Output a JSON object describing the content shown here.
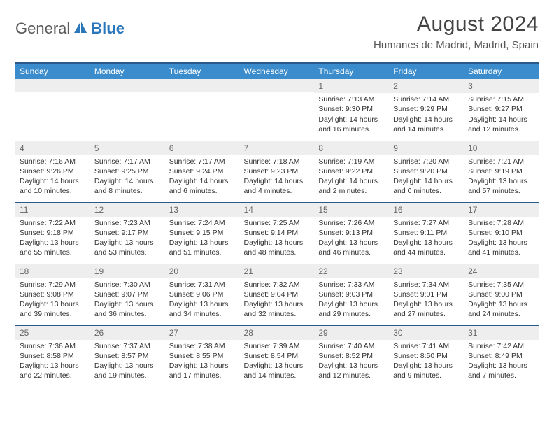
{
  "logo": {
    "text1": "General",
    "text2": "Blue"
  },
  "title": "August 2024",
  "location": "Humanes de Madrid, Madrid, Spain",
  "colors": {
    "header_bg": "#3b8ccc",
    "border": "#2a5a8a",
    "daynum_bg": "#eeeeee",
    "logo_blue": "#2a77bb"
  },
  "weekdays": [
    "Sunday",
    "Monday",
    "Tuesday",
    "Wednesday",
    "Thursday",
    "Friday",
    "Saturday"
  ],
  "weeks": [
    [
      null,
      null,
      null,
      null,
      {
        "n": "1",
        "sr": "7:13 AM",
        "ss": "9:30 PM",
        "dl": "14 hours and 16 minutes."
      },
      {
        "n": "2",
        "sr": "7:14 AM",
        "ss": "9:29 PM",
        "dl": "14 hours and 14 minutes."
      },
      {
        "n": "3",
        "sr": "7:15 AM",
        "ss": "9:27 PM",
        "dl": "14 hours and 12 minutes."
      }
    ],
    [
      {
        "n": "4",
        "sr": "7:16 AM",
        "ss": "9:26 PM",
        "dl": "14 hours and 10 minutes."
      },
      {
        "n": "5",
        "sr": "7:17 AM",
        "ss": "9:25 PM",
        "dl": "14 hours and 8 minutes."
      },
      {
        "n": "6",
        "sr": "7:17 AM",
        "ss": "9:24 PM",
        "dl": "14 hours and 6 minutes."
      },
      {
        "n": "7",
        "sr": "7:18 AM",
        "ss": "9:23 PM",
        "dl": "14 hours and 4 minutes."
      },
      {
        "n": "8",
        "sr": "7:19 AM",
        "ss": "9:22 PM",
        "dl": "14 hours and 2 minutes."
      },
      {
        "n": "9",
        "sr": "7:20 AM",
        "ss": "9:20 PM",
        "dl": "14 hours and 0 minutes."
      },
      {
        "n": "10",
        "sr": "7:21 AM",
        "ss": "9:19 PM",
        "dl": "13 hours and 57 minutes."
      }
    ],
    [
      {
        "n": "11",
        "sr": "7:22 AM",
        "ss": "9:18 PM",
        "dl": "13 hours and 55 minutes."
      },
      {
        "n": "12",
        "sr": "7:23 AM",
        "ss": "9:17 PM",
        "dl": "13 hours and 53 minutes."
      },
      {
        "n": "13",
        "sr": "7:24 AM",
        "ss": "9:15 PM",
        "dl": "13 hours and 51 minutes."
      },
      {
        "n": "14",
        "sr": "7:25 AM",
        "ss": "9:14 PM",
        "dl": "13 hours and 48 minutes."
      },
      {
        "n": "15",
        "sr": "7:26 AM",
        "ss": "9:13 PM",
        "dl": "13 hours and 46 minutes."
      },
      {
        "n": "16",
        "sr": "7:27 AM",
        "ss": "9:11 PM",
        "dl": "13 hours and 44 minutes."
      },
      {
        "n": "17",
        "sr": "7:28 AM",
        "ss": "9:10 PM",
        "dl": "13 hours and 41 minutes."
      }
    ],
    [
      {
        "n": "18",
        "sr": "7:29 AM",
        "ss": "9:08 PM",
        "dl": "13 hours and 39 minutes."
      },
      {
        "n": "19",
        "sr": "7:30 AM",
        "ss": "9:07 PM",
        "dl": "13 hours and 36 minutes."
      },
      {
        "n": "20",
        "sr": "7:31 AM",
        "ss": "9:06 PM",
        "dl": "13 hours and 34 minutes."
      },
      {
        "n": "21",
        "sr": "7:32 AM",
        "ss": "9:04 PM",
        "dl": "13 hours and 32 minutes."
      },
      {
        "n": "22",
        "sr": "7:33 AM",
        "ss": "9:03 PM",
        "dl": "13 hours and 29 minutes."
      },
      {
        "n": "23",
        "sr": "7:34 AM",
        "ss": "9:01 PM",
        "dl": "13 hours and 27 minutes."
      },
      {
        "n": "24",
        "sr": "7:35 AM",
        "ss": "9:00 PM",
        "dl": "13 hours and 24 minutes."
      }
    ],
    [
      {
        "n": "25",
        "sr": "7:36 AM",
        "ss": "8:58 PM",
        "dl": "13 hours and 22 minutes."
      },
      {
        "n": "26",
        "sr": "7:37 AM",
        "ss": "8:57 PM",
        "dl": "13 hours and 19 minutes."
      },
      {
        "n": "27",
        "sr": "7:38 AM",
        "ss": "8:55 PM",
        "dl": "13 hours and 17 minutes."
      },
      {
        "n": "28",
        "sr": "7:39 AM",
        "ss": "8:54 PM",
        "dl": "13 hours and 14 minutes."
      },
      {
        "n": "29",
        "sr": "7:40 AM",
        "ss": "8:52 PM",
        "dl": "13 hours and 12 minutes."
      },
      {
        "n": "30",
        "sr": "7:41 AM",
        "ss": "8:50 PM",
        "dl": "13 hours and 9 minutes."
      },
      {
        "n": "31",
        "sr": "7:42 AM",
        "ss": "8:49 PM",
        "dl": "13 hours and 7 minutes."
      }
    ]
  ],
  "labels": {
    "sunrise": "Sunrise: ",
    "sunset": "Sunset: ",
    "daylight": "Daylight: "
  }
}
